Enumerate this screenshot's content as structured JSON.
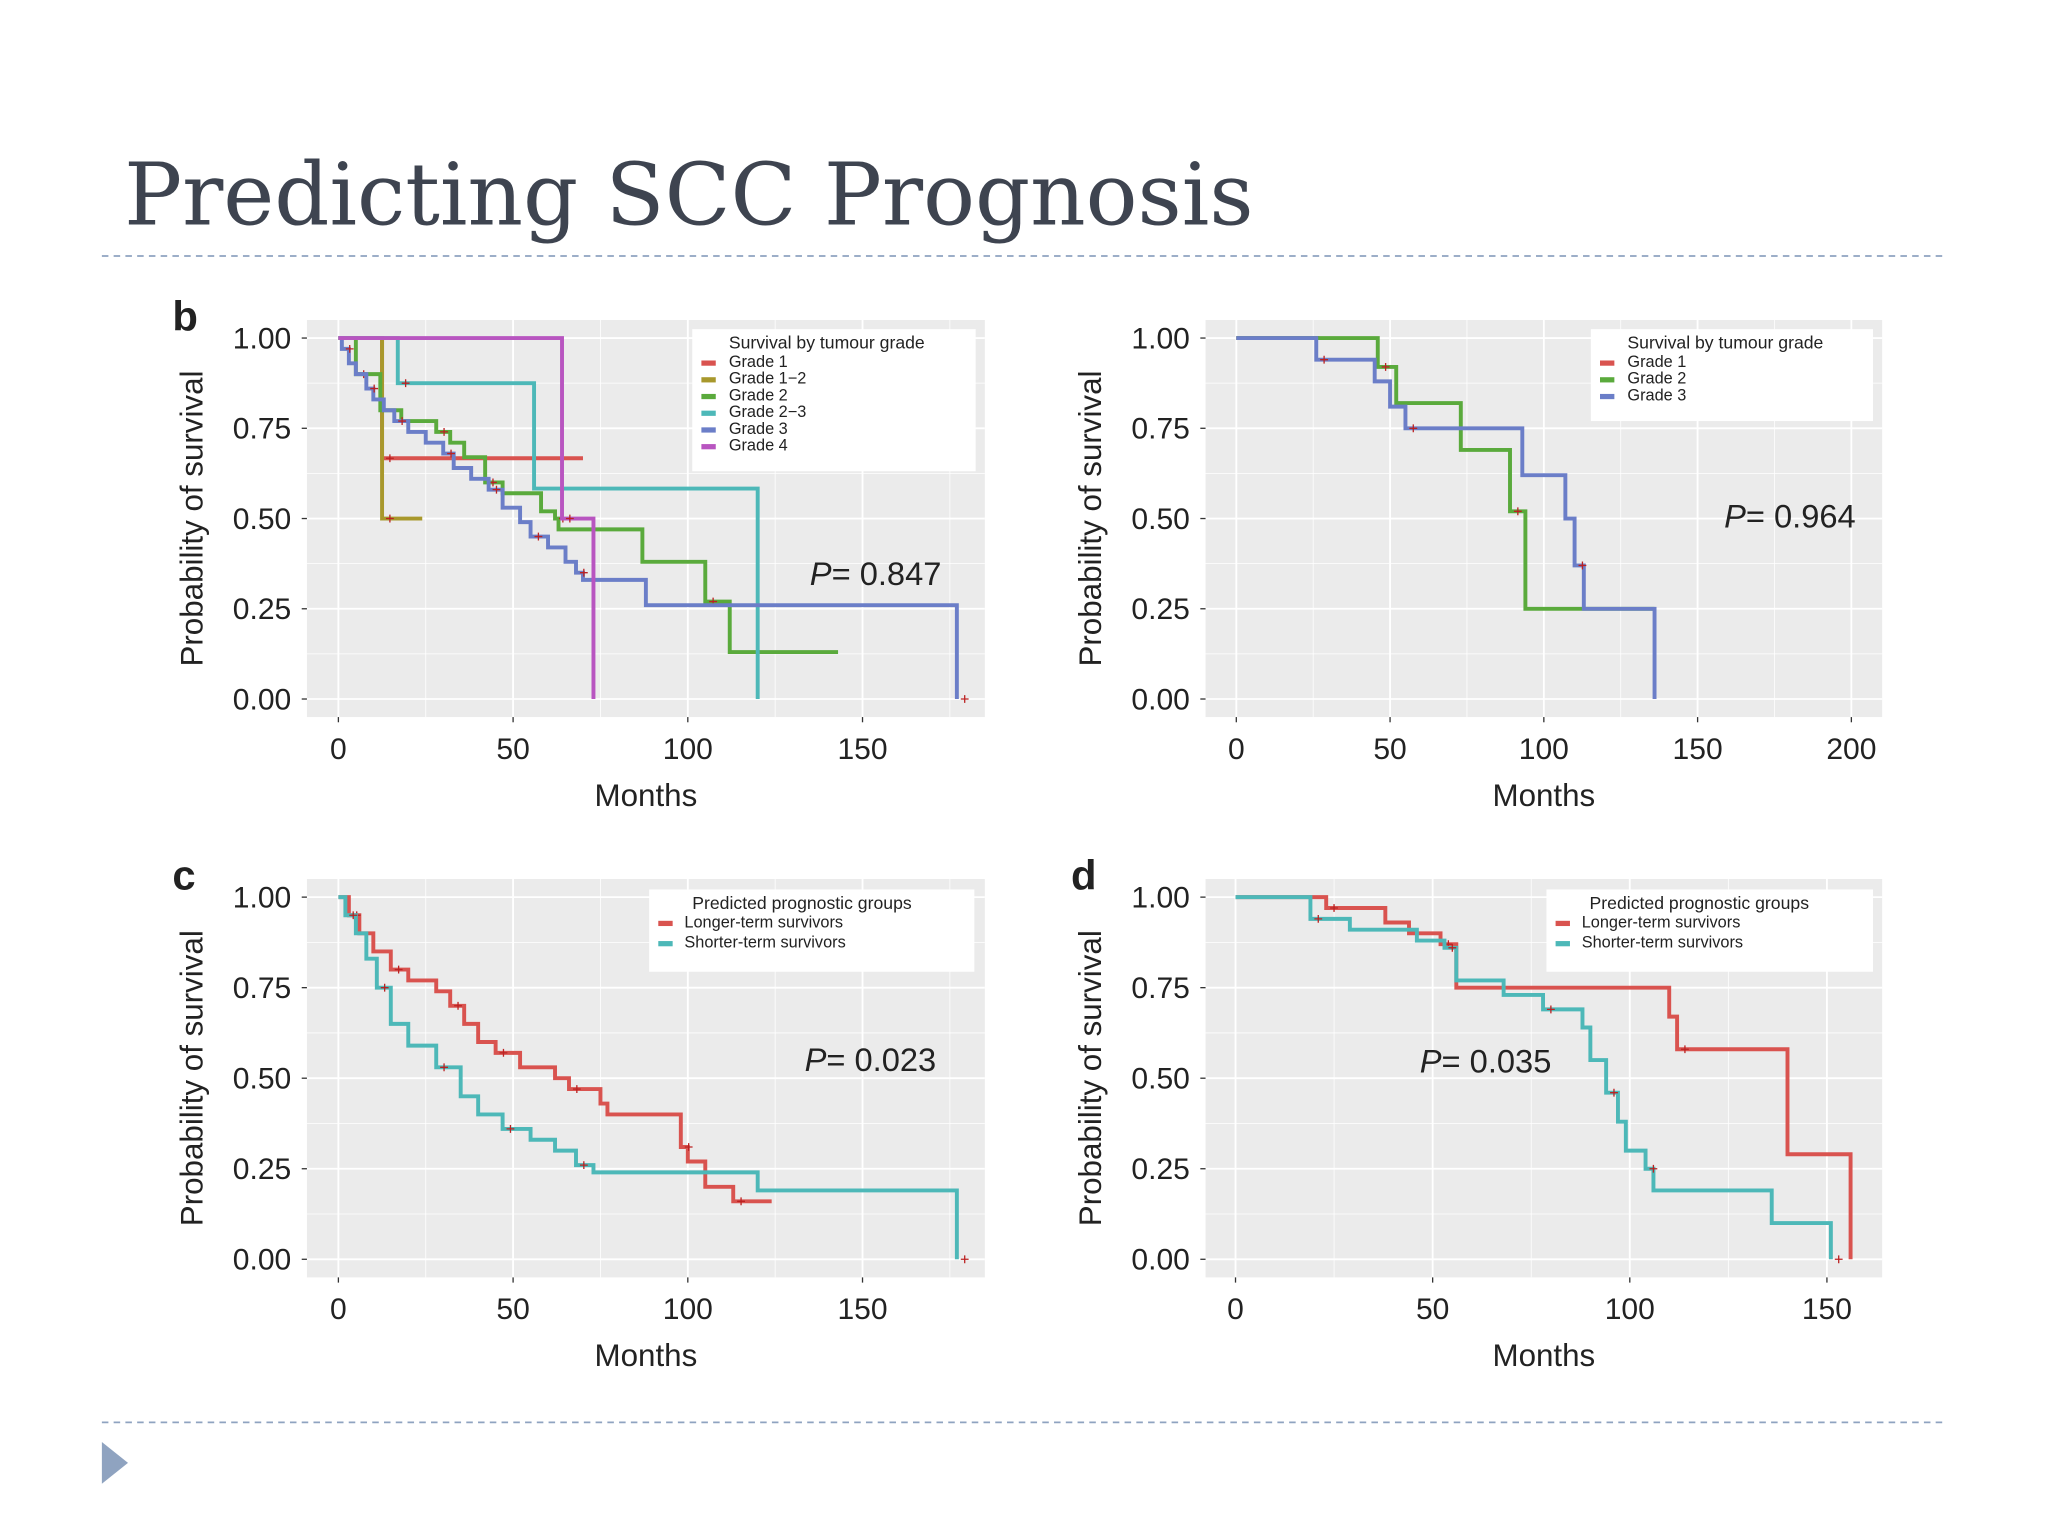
{
  "slide": {
    "title": "Predicting SCC Prognosis",
    "accent_color": "#8fa3c0"
  },
  "chart_data": [
    {
      "panel_label": "b",
      "type": "line",
      "subtype": "kaplan-meier step",
      "xlabel": "Months",
      "ylabel": "Probability of survival",
      "xlim": [
        -9,
        185
      ],
      "ylim": [
        -0.05,
        1.05
      ],
      "xticks": [
        "0",
        "50",
        "100",
        "150"
      ],
      "yticks": [
        "0.00",
        "0.25",
        "0.50",
        "0.75",
        "1.00"
      ],
      "grid": true,
      "legend": {
        "title": "Survival by tumour grade",
        "placement": "top-right"
      },
      "annotation": {
        "p_label": "P",
        "p_value": "= 0.847"
      },
      "series": [
        {
          "name": "Grade 1",
          "color": "#d9534f",
          "end": 70,
          "steps": [
            [
              0,
              1
            ],
            [
              12.5,
              0.667
            ]
          ]
        },
        {
          "name": "Grade 1−2",
          "color": "#a8982c",
          "end": 24,
          "steps": [
            [
              0,
              1
            ],
            [
              12.5,
              0.5
            ]
          ]
        },
        {
          "name": "Grade 2",
          "color": "#5aaa3c",
          "end": 143,
          "steps": [
            [
              0,
              1
            ],
            [
              5,
              0.9
            ],
            [
              12,
              0.8
            ],
            [
              18,
              0.77
            ],
            [
              28,
              0.74
            ],
            [
              32,
              0.71
            ],
            [
              36,
              0.67
            ],
            [
              42,
              0.6
            ],
            [
              47,
              0.57
            ],
            [
              58,
              0.52
            ],
            [
              62,
              0.5
            ],
            [
              63,
              0.47
            ],
            [
              87,
              0.38
            ],
            [
              105,
              0.27
            ],
            [
              112,
              0.13
            ]
          ]
        },
        {
          "name": "Grade 2−3",
          "color": "#4db8b8",
          "end": 120,
          "steps": [
            [
              0,
              1
            ],
            [
              17,
              0.875
            ],
            [
              56,
              0.583
            ],
            [
              120,
              0
            ]
          ]
        },
        {
          "name": "Grade 3",
          "color": "#6b7ec8",
          "end": 177,
          "steps": [
            [
              0,
              1
            ],
            [
              1,
              0.97
            ],
            [
              3,
              0.93
            ],
            [
              5,
              0.9
            ],
            [
              8,
              0.86
            ],
            [
              10,
              0.83
            ],
            [
              13,
              0.8
            ],
            [
              16,
              0.77
            ],
            [
              20,
              0.74
            ],
            [
              25,
              0.71
            ],
            [
              30,
              0.68
            ],
            [
              33,
              0.64
            ],
            [
              38,
              0.61
            ],
            [
              43,
              0.58
            ],
            [
              47,
              0.53
            ],
            [
              52,
              0.49
            ],
            [
              55,
              0.45
            ],
            [
              60,
              0.42
            ],
            [
              65,
              0.38
            ],
            [
              68,
              0.35
            ],
            [
              70,
              0.33
            ],
            [
              88,
              0.26
            ],
            [
              177,
              0
            ]
          ]
        },
        {
          "name": "Grade 4",
          "color": "#b855c0",
          "end": 73,
          "steps": [
            [
              0,
              1
            ],
            [
              64,
              0.5
            ],
            [
              73,
              0
            ]
          ]
        }
      ]
    },
    {
      "panel_label": "",
      "type": "line",
      "subtype": "kaplan-meier step",
      "xlabel": "Months",
      "ylabel": "Probability of survival",
      "xlim": [
        -10,
        210
      ],
      "ylim": [
        -0.05,
        1.05
      ],
      "xticks": [
        "0",
        "50",
        "100",
        "150",
        "200"
      ],
      "yticks": [
        "0.00",
        "0.25",
        "0.50",
        "0.75",
        "1.00"
      ],
      "grid": true,
      "legend": {
        "title": "Survival by tumour grade",
        "placement": "top-right"
      },
      "annotation": {
        "p_label": "P",
        "p_value": "= 0.964"
      },
      "series": [
        {
          "name": "Grade 1",
          "color": "#d9534f",
          "end": 27,
          "steps": [
            [
              0,
              1
            ]
          ]
        },
        {
          "name": "Grade 2",
          "color": "#5aaa3c",
          "end": 136,
          "steps": [
            [
              0,
              1
            ],
            [
              46,
              0.92
            ],
            [
              52,
              0.82
            ],
            [
              73,
              0.69
            ],
            [
              89,
              0.52
            ],
            [
              94,
              0.25
            ]
          ]
        },
        {
          "name": "Grade 3",
          "color": "#6b7ec8",
          "end": 136,
          "steps": [
            [
              0,
              1
            ],
            [
              26,
              0.94
            ],
            [
              45,
              0.88
            ],
            [
              50,
              0.81
            ],
            [
              55,
              0.75
            ],
            [
              93,
              0.62
            ],
            [
              107,
              0.5
            ],
            [
              110,
              0.37
            ],
            [
              113,
              0.25
            ],
            [
              136,
              0
            ]
          ]
        }
      ]
    },
    {
      "panel_label": "c",
      "type": "line",
      "subtype": "kaplan-meier step",
      "xlabel": "Months",
      "ylabel": "Probability of survival",
      "xlim": [
        -9,
        185
      ],
      "ylim": [
        -0.05,
        1.05
      ],
      "xticks": [
        "0",
        "50",
        "100",
        "150"
      ],
      "yticks": [
        "0.00",
        "0.25",
        "0.50",
        "0.75",
        "1.00"
      ],
      "grid": true,
      "legend": {
        "title": "Predicted prognostic groups",
        "placement": "top-right"
      },
      "annotation": {
        "p_label": "P",
        "p_value": "= 0.023"
      },
      "series": [
        {
          "name": "Longer-term survivors",
          "color": "#d9534f",
          "end": 124,
          "steps": [
            [
              0,
              1
            ],
            [
              3,
              0.95
            ],
            [
              6,
              0.9
            ],
            [
              10,
              0.85
            ],
            [
              15,
              0.8
            ],
            [
              20,
              0.77
            ],
            [
              28,
              0.74
            ],
            [
              32,
              0.7
            ],
            [
              36,
              0.65
            ],
            [
              40,
              0.6
            ],
            [
              45,
              0.57
            ],
            [
              52,
              0.53
            ],
            [
              62,
              0.5
            ],
            [
              66,
              0.47
            ],
            [
              75,
              0.43
            ],
            [
              77,
              0.4
            ],
            [
              98,
              0.31
            ],
            [
              100,
              0.27
            ],
            [
              105,
              0.2
            ],
            [
              113,
              0.16
            ]
          ]
        },
        {
          "name": "Shorter-term survivors",
          "color": "#4db8b8",
          "end": 177,
          "steps": [
            [
              0,
              1
            ],
            [
              2,
              0.95
            ],
            [
              5,
              0.9
            ],
            [
              8,
              0.83
            ],
            [
              11,
              0.75
            ],
            [
              15,
              0.65
            ],
            [
              20,
              0.59
            ],
            [
              28,
              0.53
            ],
            [
              35,
              0.45
            ],
            [
              40,
              0.4
            ],
            [
              47,
              0.36
            ],
            [
              55,
              0.33
            ],
            [
              62,
              0.3
            ],
            [
              68,
              0.26
            ],
            [
              73,
              0.24
            ],
            [
              120,
              0.19
            ],
            [
              177,
              0
            ]
          ]
        }
      ]
    },
    {
      "panel_label": "d",
      "type": "line",
      "subtype": "kaplan-meier step",
      "xlabel": "Months",
      "ylabel": "Probability of survival",
      "xlim": [
        -7.6,
        164
      ],
      "ylim": [
        -0.05,
        1.05
      ],
      "xticks": [
        "0",
        "50",
        "100",
        "150"
      ],
      "yticks": [
        "0.00",
        "0.25",
        "0.50",
        "0.75",
        "1.00"
      ],
      "grid": true,
      "legend": {
        "title": "Predicted prognostic groups",
        "placement": "top-right"
      },
      "annotation": {
        "p_label": "P",
        "p_value": "= 0.035"
      },
      "series": [
        {
          "name": "Longer-term survivors",
          "color": "#d9534f",
          "end": 156,
          "steps": [
            [
              0,
              1
            ],
            [
              23,
              0.97
            ],
            [
              38,
              0.93
            ],
            [
              44,
              0.9
            ],
            [
              52,
              0.87
            ],
            [
              56,
              0.75
            ],
            [
              110,
              0.67
            ],
            [
              112,
              0.58
            ],
            [
              140,
              0.29
            ],
            [
              156,
              0
            ]
          ]
        },
        {
          "name": "Shorter-term survivors",
          "color": "#4db8b8",
          "end": 151,
          "steps": [
            [
              0,
              1
            ],
            [
              19,
              0.94
            ],
            [
              29,
              0.91
            ],
            [
              46,
              0.88
            ],
            [
              53,
              0.86
            ],
            [
              56,
              0.77
            ],
            [
              68,
              0.73
            ],
            [
              78,
              0.69
            ],
            [
              88,
              0.64
            ],
            [
              90,
              0.55
            ],
            [
              94,
              0.46
            ],
            [
              97,
              0.38
            ],
            [
              99,
              0.3
            ],
            [
              104,
              0.25
            ],
            [
              106,
              0.19
            ],
            [
              136,
              0.1
            ],
            [
              151,
              0
            ]
          ]
        }
      ]
    }
  ]
}
